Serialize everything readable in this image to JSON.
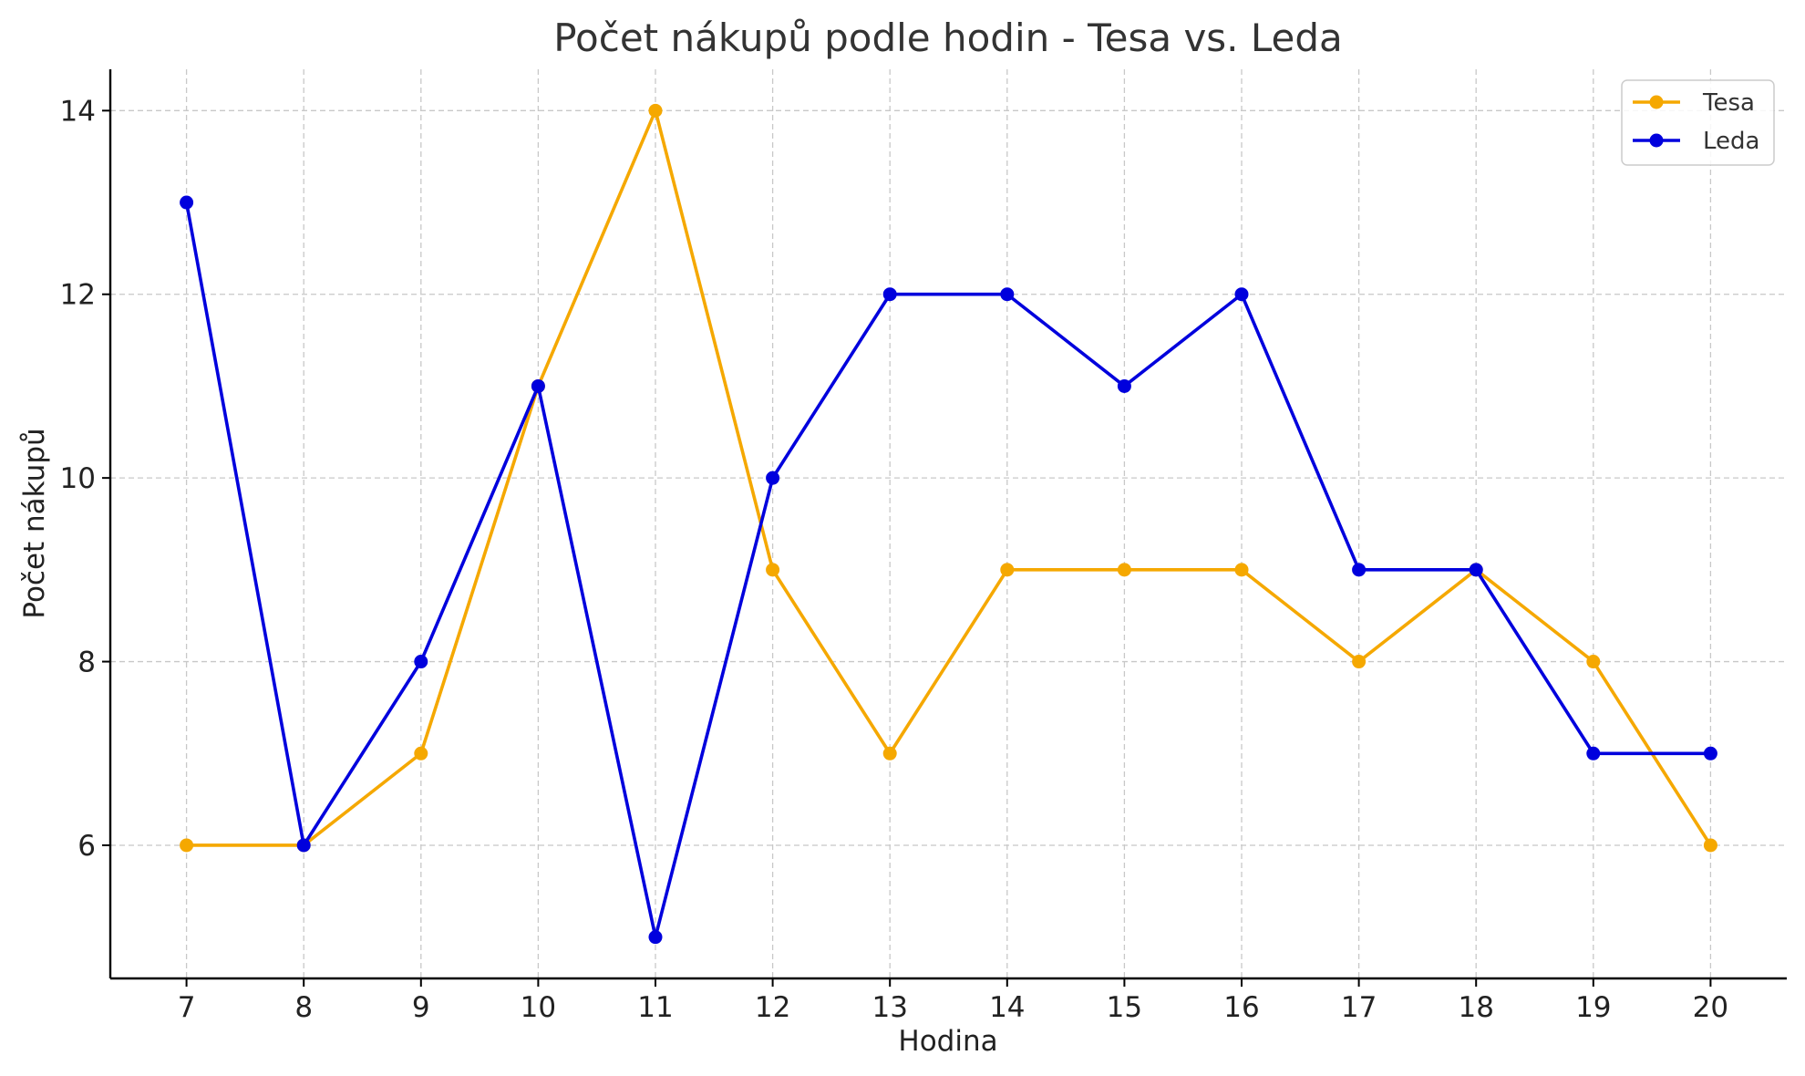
{
  "chart_data": {
    "type": "line",
    "title": "Počet nákupů podle hodin - Tesa vs. Leda",
    "xlabel": "Hodina",
    "ylabel": "Počet nákupů",
    "x": [
      7,
      8,
      9,
      10,
      11,
      12,
      13,
      14,
      15,
      16,
      17,
      18,
      19,
      20
    ],
    "x_tick_labels": [
      "7",
      "8",
      "9",
      "10",
      "11",
      "12",
      "13",
      "14",
      "15",
      "16",
      "17",
      "18",
      "19",
      "20"
    ],
    "y_ticks": [
      6,
      8,
      10,
      12,
      14
    ],
    "y_tick_labels": [
      "6",
      "8",
      "10",
      "12",
      "14"
    ],
    "xlim": [
      6.35,
      20.65
    ],
    "ylim": [
      4.55,
      14.45
    ],
    "grid": true,
    "legend_position": "top-right",
    "series": [
      {
        "name": "Tesa",
        "color": "#f5a800",
        "values": [
          6,
          6,
          7,
          11,
          14,
          9,
          7,
          9,
          9,
          9,
          8,
          9,
          8,
          6
        ]
      },
      {
        "name": "Leda",
        "color": "#0000dd",
        "values": [
          13,
          6,
          8,
          11,
          5,
          10,
          12,
          12,
          11,
          12,
          9,
          9,
          7,
          7
        ]
      }
    ]
  }
}
